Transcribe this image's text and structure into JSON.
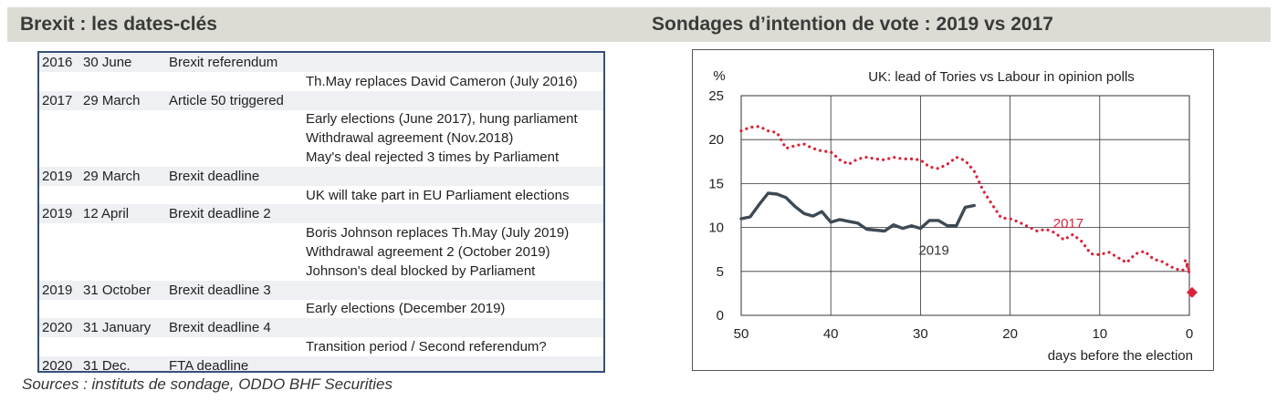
{
  "left_panel": {
    "title": "Brexit : les dates-clés"
  },
  "right_panel": {
    "title": "Sondages d’intention de vote : 2019 vs 2017"
  },
  "timeline": [
    {
      "year": "2016",
      "date": "30 June",
      "event": "Brexit referendum",
      "note": ""
    },
    {
      "year": "",
      "date": "",
      "event": "",
      "note": "Th.May replaces David Cameron (July 2016)"
    },
    {
      "year": "2017",
      "date": "29 March",
      "event": "Article 50 triggered",
      "note": ""
    },
    {
      "year": "",
      "date": "",
      "event": "",
      "note": "Early elections (June 2017), hung parliament"
    },
    {
      "year": "",
      "date": "",
      "event": "",
      "note": "Withdrawal agreement (Nov.2018)"
    },
    {
      "year": "",
      "date": "",
      "event": "",
      "note": "May's deal rejected 3 times by Parliament"
    },
    {
      "year": "2019",
      "date": "29 March",
      "event": "Brexit deadline",
      "note": ""
    },
    {
      "year": "",
      "date": "",
      "event": "",
      "note": "UK will take part in EU Parliament elections"
    },
    {
      "year": "2019",
      "date": "12 April",
      "event": "Brexit deadline 2",
      "note": ""
    },
    {
      "year": "",
      "date": "",
      "event": "",
      "note": "Boris Johnson replaces Th.May (July 2019)"
    },
    {
      "year": "",
      "date": "",
      "event": "",
      "note": "Withdrawal agreement 2 (October 2019)"
    },
    {
      "year": "",
      "date": "",
      "event": "",
      "note": "Johnson's deal blocked by Parliament"
    },
    {
      "year": "2019",
      "date": "31 October",
      "event": "Brexit deadline 3",
      "note": ""
    },
    {
      "year": "",
      "date": "",
      "event": "",
      "note": "Early elections (December 2019)"
    },
    {
      "year": "2020",
      "date": "31 January",
      "event": "Brexit deadline 4",
      "note": ""
    },
    {
      "year": "",
      "date": "",
      "event": "",
      "note": "Transition period / Second referendum?"
    },
    {
      "year": "2020",
      "date": "31 Dec.",
      "event": "FTA deadline",
      "note": ""
    }
  ],
  "sources": "Sources : instituts de sondage, ODDO BHF Securities",
  "colors": {
    "series_2019": "#3d4a55",
    "series_2017": "#d8243a",
    "header_bg": "#dcdcd4",
    "table_border": "#35507a"
  },
  "chart_data": {
    "type": "line",
    "title": "UK: lead of Tories vs Labour in opinion polls",
    "ylabel": "%",
    "xlabel": "days before the election",
    "xlim": [
      50,
      0
    ],
    "ylim": [
      0,
      25
    ],
    "xticks": [
      50,
      40,
      30,
      20,
      10,
      0
    ],
    "yticks": [
      0,
      5,
      10,
      15,
      20,
      25
    ],
    "grid": true,
    "series": [
      {
        "name": "2019",
        "style": "solid",
        "x": [
          50,
          49,
          48,
          47,
          46,
          45,
          44,
          43,
          42,
          41,
          40,
          39,
          38,
          37,
          36,
          35,
          34,
          33,
          32,
          31,
          30,
          29,
          28,
          27,
          26,
          25,
          24
        ],
        "values": [
          11.0,
          11.2,
          12.6,
          13.9,
          13.8,
          13.4,
          12.4,
          11.6,
          11.3,
          11.8,
          10.6,
          10.9,
          10.7,
          10.5,
          9.8,
          9.7,
          9.6,
          10.3,
          9.9,
          10.2,
          9.9,
          10.8,
          10.8,
          10.2,
          10.2,
          12.3,
          12.5
        ]
      },
      {
        "name": "2017",
        "style": "dotted",
        "x": [
          50,
          49,
          48,
          47,
          46,
          45,
          44,
          43,
          42,
          41,
          40,
          39,
          38,
          37,
          36,
          35,
          34,
          33,
          32,
          31,
          30,
          29,
          28,
          27,
          26,
          25,
          24,
          23,
          22,
          21,
          20,
          19,
          18,
          17,
          16,
          15,
          14,
          13,
          12,
          11,
          10,
          9,
          8,
          7,
          6,
          5,
          4,
          3,
          2,
          1,
          0,
          0.5,
          0
        ],
        "values": [
          21.0,
          21.4,
          21.5,
          21.0,
          20.8,
          19.0,
          19.3,
          19.5,
          19.0,
          18.7,
          18.6,
          17.7,
          17.2,
          17.8,
          18.0,
          17.8,
          17.7,
          18.0,
          17.8,
          17.8,
          17.7,
          16.9,
          16.7,
          17.2,
          18.0,
          17.6,
          16.4,
          14.2,
          12.6,
          11.1,
          11.0,
          10.6,
          10.1,
          9.6,
          9.8,
          9.4,
          8.6,
          9.2,
          8.4,
          7.0,
          6.9,
          7.2,
          6.6,
          6.0,
          7.0,
          7.3,
          6.4,
          6.1,
          5.5,
          5.1,
          5.3,
          6.3,
          4.8
        ]
      }
    ],
    "final_marker": {
      "series": "2017",
      "x": -0.3,
      "y": 2.6
    },
    "annotations": [
      {
        "text": "2017",
        "x": 13.5,
        "y": 10.5
      },
      {
        "text": "2019",
        "x": 28.5,
        "y": 7.4
      }
    ]
  }
}
